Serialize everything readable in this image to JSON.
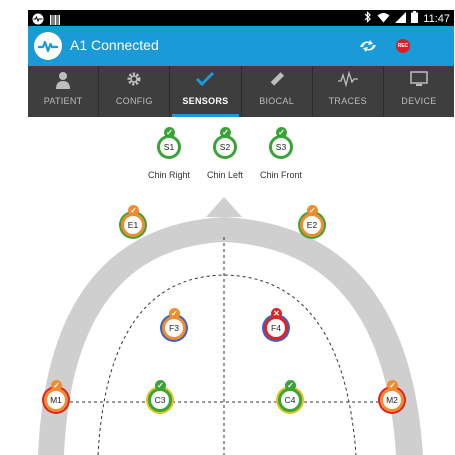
{
  "status_bar": {
    "time": "11:47"
  },
  "app_bar": {
    "title": "A1 Connected",
    "rec_label": "REC"
  },
  "tabs": [
    {
      "label": "PATIENT",
      "icon": "person-icon",
      "active": false
    },
    {
      "label": "CONFIG",
      "icon": "gear-icon",
      "active": false
    },
    {
      "label": "SENSORS",
      "icon": "checkmark-icon",
      "active": true
    },
    {
      "label": "BIOCAL",
      "icon": "ruler-icon",
      "active": false
    },
    {
      "label": "TRACES",
      "icon": "waveform-icon",
      "active": false
    },
    {
      "label": "DEVICE",
      "icon": "monitor-icon",
      "active": false
    }
  ],
  "chin_sensors": [
    {
      "id": "S1",
      "label": "Chin Right",
      "status": "ok"
    },
    {
      "id": "S2",
      "label": "Chin Left",
      "status": "ok"
    },
    {
      "id": "S3",
      "label": "Chin Front",
      "status": "ok"
    }
  ],
  "head_sensors": [
    {
      "id": "E1",
      "status": "ok"
    },
    {
      "id": "E2",
      "status": "ok"
    },
    {
      "id": "F3",
      "status": "ok"
    },
    {
      "id": "F4",
      "status": "error"
    },
    {
      "id": "M1",
      "status": "ok"
    },
    {
      "id": "C3",
      "status": "ok"
    },
    {
      "id": "C4",
      "status": "ok"
    },
    {
      "id": "M2",
      "status": "ok"
    }
  ],
  "colors": {
    "accent": "#1a9ad6",
    "green": "#3aa33a",
    "orange": "#f08c2e",
    "red": "#e02424",
    "yellow": "#e3c21a",
    "blue": "#3b63c4"
  }
}
